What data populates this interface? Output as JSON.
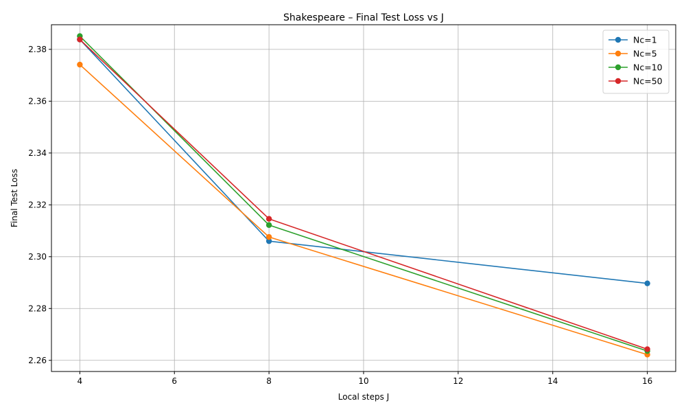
{
  "chart_data": {
    "type": "line",
    "title": "Shakespeare – Final Test Loss vs J",
    "xlabel": "Local steps J",
    "ylabel": "Final Test Loss",
    "x": [
      4,
      8,
      16
    ],
    "xlim": [
      3.4,
      16.6
    ],
    "ylim": [
      2.2557,
      2.3895
    ],
    "x_ticks": [
      4,
      6,
      8,
      10,
      12,
      14,
      16
    ],
    "x_tick_labels": [
      "4",
      "6",
      "8",
      "10",
      "12",
      "14",
      "16"
    ],
    "y_ticks": [
      2.26,
      2.28,
      2.3,
      2.32,
      2.34,
      2.36,
      2.38
    ],
    "y_tick_labels": [
      "2.26",
      "2.28",
      "2.30",
      "2.32",
      "2.34",
      "2.36",
      "2.38"
    ],
    "grid": true,
    "legend_position": "top-right",
    "series": [
      {
        "name": "Nc=1",
        "color": "#1f77b4",
        "values": [
          2.3838,
          2.306,
          2.2897
        ]
      },
      {
        "name": "Nc=5",
        "color": "#ff7f0e",
        "values": [
          2.3741,
          2.3076,
          2.2622
        ]
      },
      {
        "name": "Nc=10",
        "color": "#2ca02c",
        "values": [
          2.3851,
          2.3122,
          2.2636
        ]
      },
      {
        "name": "Nc=50",
        "color": "#d62728",
        "values": [
          2.3838,
          2.3146,
          2.2643
        ]
      }
    ]
  }
}
